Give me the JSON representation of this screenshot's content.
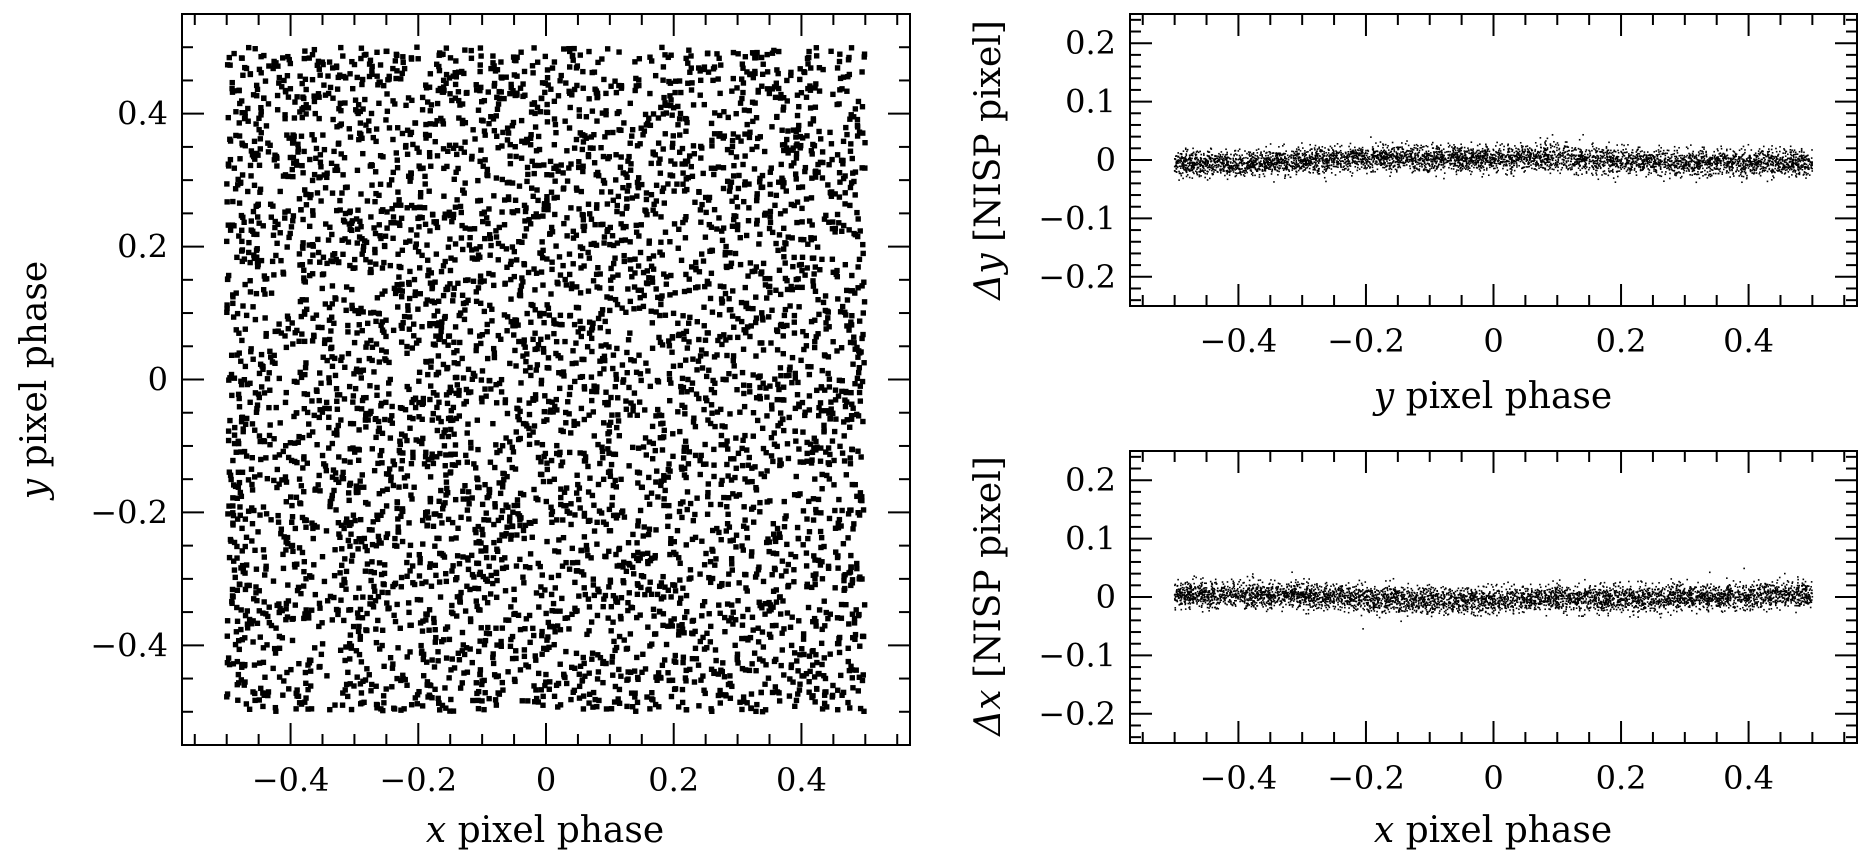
{
  "chart_data": [
    {
      "type": "scatter",
      "panel": "left",
      "xlabel_var": "x",
      "xlabel_rest": " pixel phase",
      "ylabel_var": "y",
      "ylabel_rest": " pixel phase",
      "xlim": [
        -0.57,
        0.57
      ],
      "ylim": [
        -0.55,
        0.55
      ],
      "xticks": [
        -0.4,
        -0.2,
        0,
        0.2,
        0.4
      ],
      "xtick_labels": [
        "−0.4",
        "−0.2",
        "0",
        "0.2",
        "0.4"
      ],
      "yticks": [
        -0.4,
        -0.2,
        0,
        0.2,
        0.4
      ],
      "ytick_labels": [
        "−0.4",
        "−0.2",
        "0",
        "0.2",
        "0.4"
      ],
      "series": [
        {
          "distribution": "uniform",
          "x_range": [
            -0.5,
            0.5
          ],
          "y_range": [
            -0.5,
            0.5
          ],
          "n_points": 5000
        }
      ],
      "grid": false
    },
    {
      "type": "scatter",
      "panel": "top-right",
      "xlabel_var": "y",
      "xlabel_rest": " pixel phase",
      "ylabel_var": "Δy",
      "ylabel_rest": " [NISP pixel]",
      "xlim": [
        -0.57,
        0.57
      ],
      "ylim": [
        -0.25,
        0.25
      ],
      "xticks": [
        -0.4,
        -0.2,
        0,
        0.2,
        0.4
      ],
      "xtick_labels": [
        "−0.4",
        "−0.2",
        "0",
        "0.2",
        "0.4"
      ],
      "yticks": [
        -0.2,
        -0.1,
        0,
        0.1,
        0.2
      ],
      "ytick_labels": [
        "−0.2",
        "−0.1",
        "0",
        "0.1",
        "0.2"
      ],
      "series": [
        {
          "x_range": [
            -0.5,
            0.5
          ],
          "trend_x": [
            -0.5,
            -0.4,
            -0.3,
            -0.2,
            -0.1,
            0,
            0.1,
            0.2,
            0.3,
            0.4,
            0.5
          ],
          "trend_y": [
            -0.006,
            -0.006,
            -0.001,
            0.003,
            0.001,
            0.002,
            0.004,
            -0.002,
            -0.005,
            -0.004,
            -0.006
          ],
          "spread_sd": 0.011,
          "n_points": 5000
        }
      ],
      "grid": false
    },
    {
      "type": "scatter",
      "panel": "bottom-right",
      "xlabel_var": "x",
      "xlabel_rest": " pixel phase",
      "ylabel_var": "Δx",
      "ylabel_rest": " [NISP pixel]",
      "xlim": [
        -0.57,
        0.57
      ],
      "ylim": [
        -0.25,
        0.25
      ],
      "xticks": [
        -0.4,
        -0.2,
        0,
        0.2,
        0.4
      ],
      "xtick_labels": [
        "−0.4",
        "−0.2",
        "0",
        "0.2",
        "0.4"
      ],
      "yticks": [
        -0.2,
        -0.1,
        0,
        0.1,
        0.2
      ],
      "ytick_labels": [
        "−0.2",
        "−0.1",
        "0",
        "0.1",
        "0.2"
      ],
      "series": [
        {
          "x_range": [
            -0.5,
            0.5
          ],
          "trend_x": [
            -0.5,
            -0.4,
            -0.3,
            -0.2,
            -0.1,
            0,
            0.1,
            0.2,
            0.3,
            0.4,
            0.5
          ],
          "trend_y": [
            0.003,
            0.003,
            0.003,
            -0.002,
            -0.006,
            -0.006,
            -0.002,
            -0.002,
            -0.001,
            0.002,
            0.005
          ],
          "spread_sd": 0.011,
          "n_points": 5000
        }
      ],
      "grid": false
    }
  ],
  "colors": {
    "marker": "#000000",
    "axes": "#000000",
    "background": "#ffffff"
  }
}
